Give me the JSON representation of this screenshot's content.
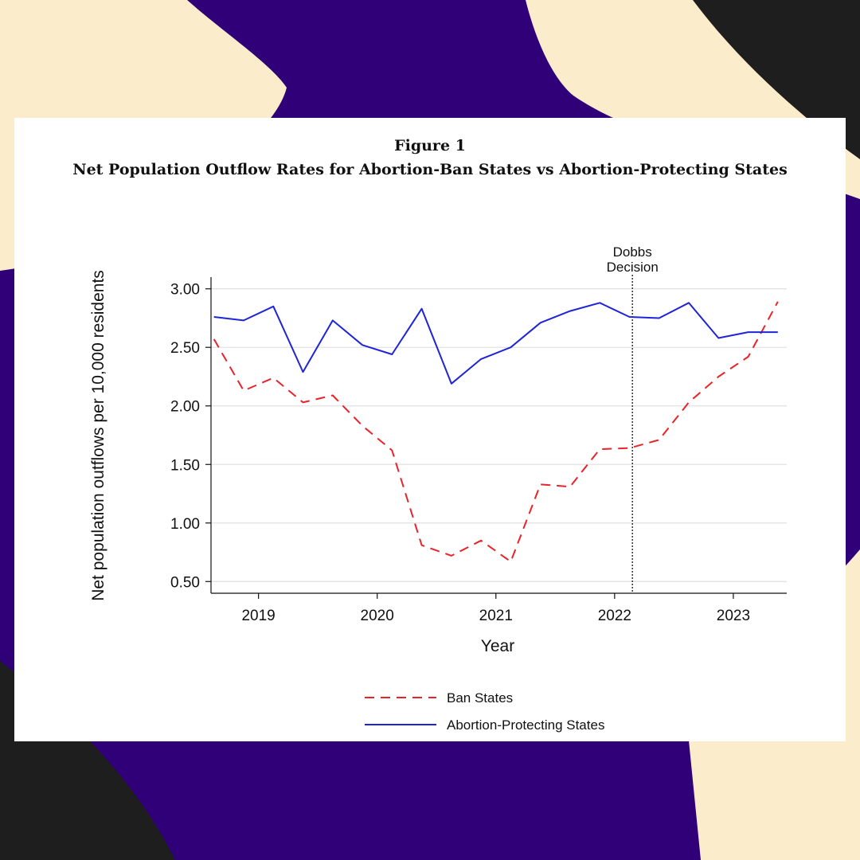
{
  "figure": {
    "label": "Figure 1",
    "title": "Net Population Outflow Rates for Abortion-Ban States vs Abortion-Protecting States"
  },
  "colors": {
    "cream": "#fbeccb",
    "purple": "#2f0078",
    "black": "#1e1e1e",
    "ban_states": "#e8242a",
    "protecting_states": "#1f25d6"
  },
  "chart_data": {
    "type": "line",
    "xlabel": "Year",
    "ylabel": "Net population outflows per 10,000 residents",
    "x_ticks": [
      "2019",
      "2020",
      "2021",
      "2022",
      "2023"
    ],
    "y_ticks": [
      "0.50",
      "1.00",
      "1.50",
      "2.00",
      "2.50",
      "3.00"
    ],
    "xlim": [
      2018.6,
      2023.45
    ],
    "ylim": [
      0.4,
      3.1
    ],
    "grid": "horizontal",
    "legend": "bottom",
    "annotation": {
      "text_lines": [
        "Dobbs",
        "Decision"
      ],
      "x": 2022.15
    },
    "x": [
      2018.625,
      2018.875,
      2019.125,
      2019.375,
      2019.625,
      2019.875,
      2020.125,
      2020.375,
      2020.625,
      2020.875,
      2021.125,
      2021.375,
      2021.625,
      2021.875,
      2022.125,
      2022.375,
      2022.625,
      2022.875,
      2023.125,
      2023.375
    ],
    "series": [
      {
        "name": "Ban States",
        "style": "dashed",
        "color": "#e8242a",
        "values": [
          2.57,
          2.13,
          2.24,
          2.03,
          2.09,
          1.83,
          1.62,
          0.81,
          0.72,
          0.85,
          0.67,
          1.33,
          1.31,
          1.63,
          1.64,
          1.71,
          2.03,
          2.25,
          2.42,
          2.89
        ]
      },
      {
        "name": "Abortion-Protecting States",
        "style": "solid",
        "color": "#1f25d6",
        "values": [
          2.76,
          2.73,
          2.85,
          2.29,
          2.73,
          2.52,
          2.44,
          2.83,
          2.19,
          2.4,
          2.5,
          2.71,
          2.81,
          2.88,
          2.76,
          2.75,
          2.88,
          2.58,
          2.63,
          2.63
        ]
      }
    ]
  }
}
